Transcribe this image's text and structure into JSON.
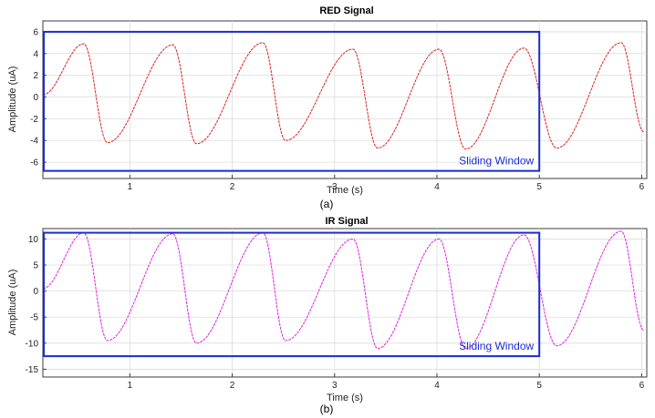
{
  "chart_data": [
    {
      "type": "line",
      "title": "RED Signal",
      "xlabel": "Time (s)",
      "ylabel": "Amplitude (uA)",
      "caption": "(a)",
      "xlim": [
        0.15,
        6.05
      ],
      "ylim": [
        -7.5,
        7
      ],
      "xticks": [
        1,
        2,
        3,
        4,
        5,
        6
      ],
      "yticks": [
        -6,
        -4,
        -2,
        0,
        2,
        4,
        6
      ],
      "grid": true,
      "series": [
        {
          "color": "#e02020",
          "x": [
            0.15,
            0.55,
            0.78,
            1.42,
            1.65,
            2.3,
            2.52,
            3.18,
            3.42,
            4.02,
            4.28,
            4.85,
            5.17,
            5.8,
            6.02
          ],
          "y": [
            0.2,
            4.9,
            -4.2,
            4.8,
            -4.3,
            5.0,
            -4.0,
            4.4,
            -4.7,
            4.4,
            -4.8,
            4.5,
            -4.7,
            5.0,
            -3.2
          ]
        }
      ],
      "annotation": {
        "label": "Sliding Window",
        "x_range": [
          0.15,
          5.0
        ],
        "y_range": [
          -6.8,
          6
        ],
        "color": "#1a2bd6"
      }
    },
    {
      "type": "line",
      "title": "IR Signal",
      "xlabel": "Time (s)",
      "ylabel": "Amplitude (uA)",
      "caption": "(b)",
      "xlim": [
        0.15,
        6.05
      ],
      "ylim": [
        -16.5,
        12
      ],
      "xticks": [
        1,
        2,
        3,
        4,
        5,
        6
      ],
      "yticks": [
        -15,
        -10,
        -5,
        0,
        5,
        10
      ],
      "grid": true,
      "series": [
        {
          "color": "#e020e0",
          "x": [
            0.15,
            0.55,
            0.78,
            1.42,
            1.65,
            2.3,
            2.52,
            3.18,
            3.42,
            4.02,
            4.28,
            4.85,
            5.17,
            5.8,
            6.02
          ],
          "y": [
            0.5,
            11.2,
            -9.5,
            11.0,
            -10.0,
            11.2,
            -9.5,
            10.0,
            -11.0,
            10.0,
            -11.0,
            10.8,
            -10.5,
            11.5,
            -7.5
          ]
        }
      ],
      "annotation": {
        "label": "Sliding Window",
        "x_range": [
          0.15,
          5.0
        ],
        "y_range": [
          -12.5,
          11.2
        ],
        "color": "#1a2bd6"
      }
    }
  ]
}
